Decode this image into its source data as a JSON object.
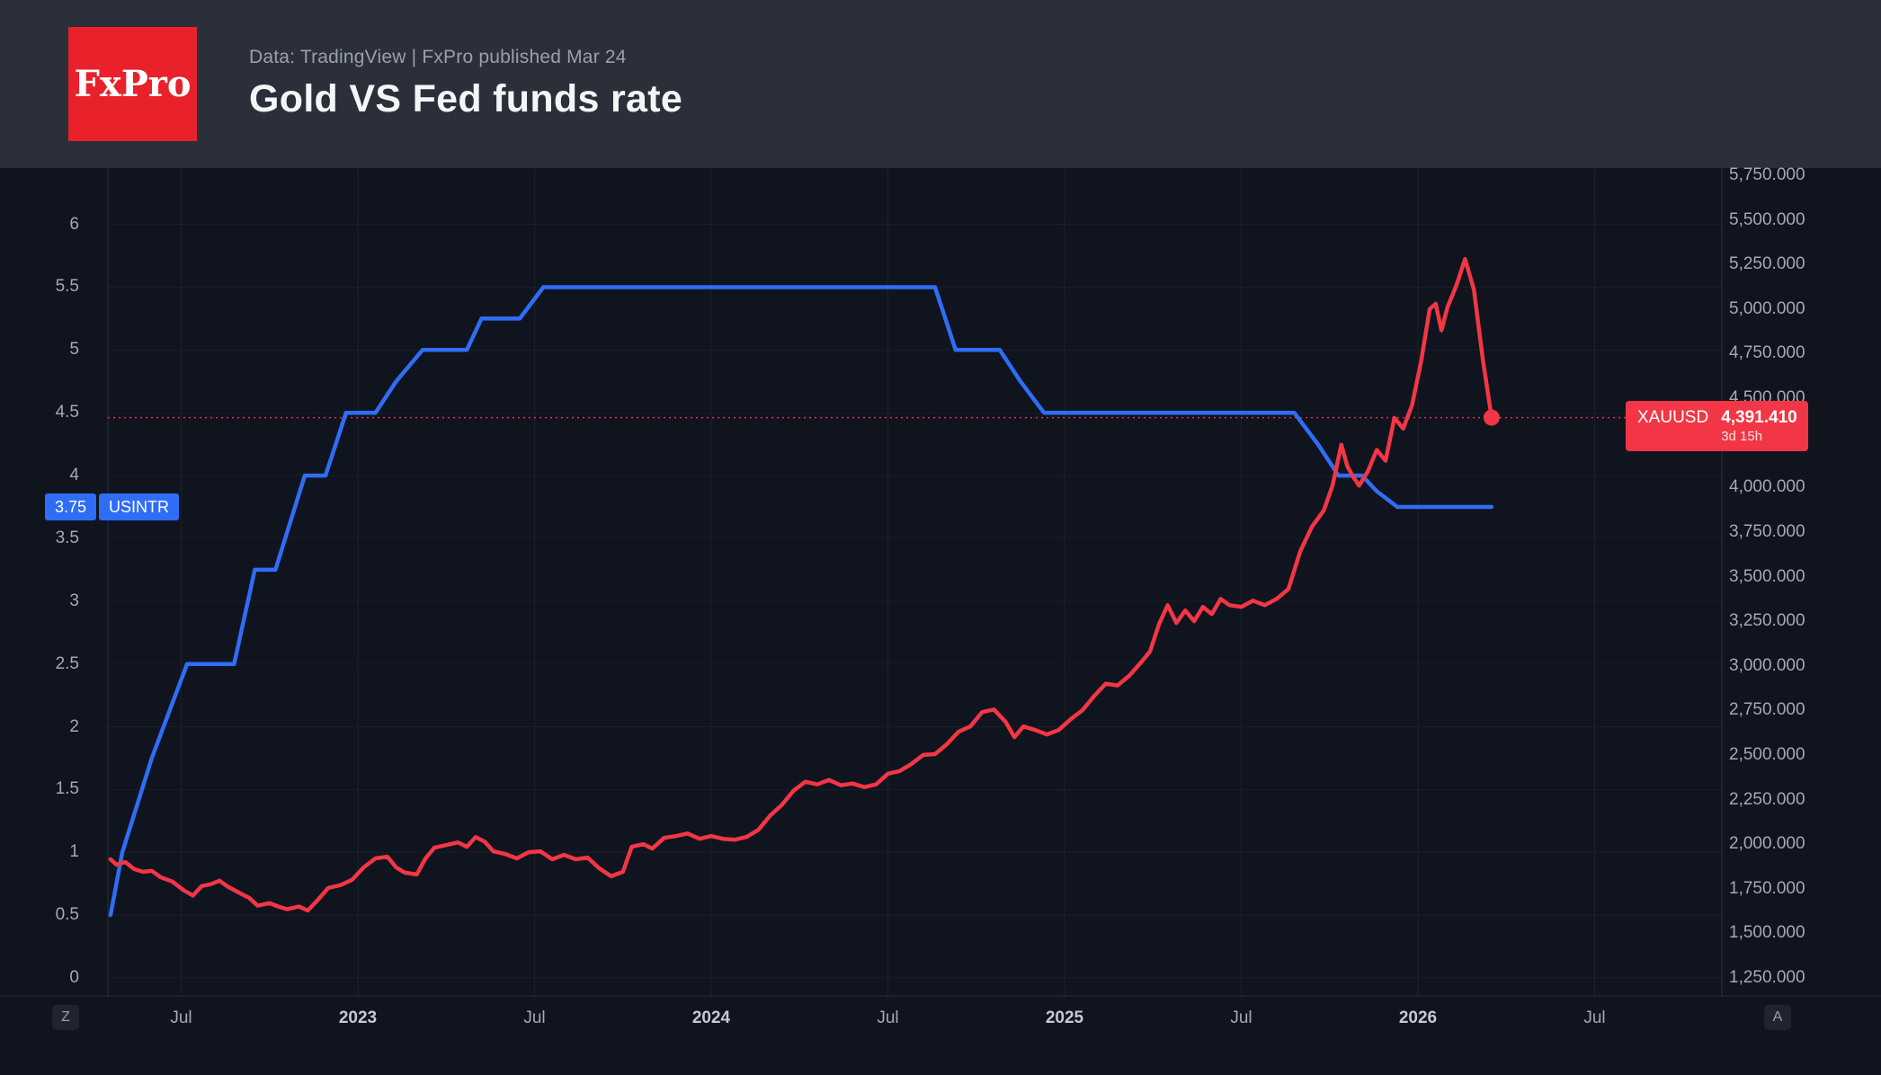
{
  "header": {
    "logo_text": "FxPro",
    "subtitle": "Data: TradingView | FxPro published Mar 24",
    "title": "Gold VS Fed funds rate"
  },
  "badges": {
    "usintr": {
      "value": "3.75",
      "label": "USINTR"
    },
    "xauusd": {
      "symbol": "XAUUSD",
      "value": "4,391.410",
      "countdown": "3d 15h"
    }
  },
  "scale_buttons": {
    "left": "Z",
    "right": "A"
  },
  "colors": {
    "header_bg": "#2b2f3a",
    "chart_bg": "#10141f",
    "logo_red": "#e8212a",
    "blue": "#2f6df6",
    "red": "#f23645",
    "axis_text": "#a6a9b2"
  },
  "chart_data": {
    "type": "line",
    "title": "Gold VS Fed funds rate",
    "x_unit": "months since 2022-01",
    "time_axis": {
      "ticks": [
        6,
        12,
        18,
        24,
        30,
        36,
        42,
        48,
        54
      ],
      "labels": [
        "Jul",
        "2023",
        "Jul",
        "2024",
        "Jul",
        "2025",
        "Jul",
        "2026",
        "Jul"
      ]
    },
    "left_axis": {
      "name": "USINTR",
      "ticks": [
        6,
        5.5,
        5,
        4.5,
        4,
        3.5,
        3,
        2.5,
        2,
        1.5,
        1,
        0.5,
        0
      ],
      "range": [
        0,
        6.45
      ]
    },
    "right_axis": {
      "name": "XAUUSD",
      "ticks": [
        5750,
        5500,
        5250,
        5000,
        4750,
        4500,
        4250,
        4000,
        3750,
        3500,
        3250,
        3000,
        2750,
        2500,
        2250,
        2000,
        1750,
        1500,
        1250
      ],
      "range": [
        1250,
        5790
      ],
      "decimals": 3
    },
    "series": [
      {
        "name": "USINTR",
        "axis": "left",
        "color": "#2f6df6",
        "last_value": 3.75,
        "points": [
          [
            3.6,
            0.5
          ],
          [
            4.0,
            1.0
          ],
          [
            5.0,
            1.75
          ],
          [
            6.2,
            2.5
          ],
          [
            7.8,
            2.5
          ],
          [
            8.5,
            3.25
          ],
          [
            9.2,
            3.25
          ],
          [
            10.2,
            4.0
          ],
          [
            10.9,
            4.0
          ],
          [
            11.6,
            4.5
          ],
          [
            12.6,
            4.5
          ],
          [
            13.3,
            4.75
          ],
          [
            14.2,
            5.0
          ],
          [
            15.7,
            5.0
          ],
          [
            16.2,
            5.25
          ],
          [
            17.5,
            5.25
          ],
          [
            18.3,
            5.5
          ],
          [
            31.6,
            5.5
          ],
          [
            32.3,
            5.0
          ],
          [
            33.8,
            5.0
          ],
          [
            34.5,
            4.75
          ],
          [
            35.3,
            4.5
          ],
          [
            43.8,
            4.5
          ],
          [
            44.6,
            4.25
          ],
          [
            45.3,
            4.0
          ],
          [
            46.1,
            4.0
          ],
          [
            46.6,
            3.875
          ],
          [
            47.3,
            3.75
          ],
          [
            50.5,
            3.75
          ]
        ]
      },
      {
        "name": "XAUUSD",
        "axis": "right",
        "color": "#f23645",
        "last_value": 4391.41,
        "points": [
          [
            3.6,
            1915
          ],
          [
            3.8,
            1885
          ],
          [
            4.1,
            1900
          ],
          [
            4.4,
            1860
          ],
          [
            4.7,
            1845
          ],
          [
            5.0,
            1850
          ],
          [
            5.3,
            1815
          ],
          [
            5.7,
            1790
          ],
          [
            6.1,
            1740
          ],
          [
            6.4,
            1712
          ],
          [
            6.7,
            1765
          ],
          [
            7.0,
            1775
          ],
          [
            7.3,
            1795
          ],
          [
            7.6,
            1760
          ],
          [
            8.0,
            1725
          ],
          [
            8.3,
            1700
          ],
          [
            8.6,
            1655
          ],
          [
            9.0,
            1670
          ],
          [
            9.3,
            1650
          ],
          [
            9.6,
            1635
          ],
          [
            10.0,
            1650
          ],
          [
            10.3,
            1628
          ],
          [
            10.6,
            1680
          ],
          [
            11.0,
            1755
          ],
          [
            11.4,
            1770
          ],
          [
            11.8,
            1800
          ],
          [
            12.2,
            1870
          ],
          [
            12.6,
            1920
          ],
          [
            13.0,
            1930
          ],
          [
            13.3,
            1870
          ],
          [
            13.6,
            1840
          ],
          [
            14.0,
            1830
          ],
          [
            14.3,
            1920
          ],
          [
            14.6,
            1980
          ],
          [
            15.0,
            1995
          ],
          [
            15.4,
            2010
          ],
          [
            15.7,
            1985
          ],
          [
            16.0,
            2040
          ],
          [
            16.3,
            2015
          ],
          [
            16.6,
            1960
          ],
          [
            17.0,
            1945
          ],
          [
            17.4,
            1920
          ],
          [
            17.8,
            1955
          ],
          [
            18.2,
            1960
          ],
          [
            18.6,
            1915
          ],
          [
            19.0,
            1940
          ],
          [
            19.4,
            1915
          ],
          [
            19.8,
            1925
          ],
          [
            20.2,
            1865
          ],
          [
            20.6,
            1820
          ],
          [
            21.0,
            1845
          ],
          [
            21.3,
            1985
          ],
          [
            21.7,
            2000
          ],
          [
            22.0,
            1975
          ],
          [
            22.4,
            2035
          ],
          [
            22.8,
            2045
          ],
          [
            23.2,
            2060
          ],
          [
            23.6,
            2030
          ],
          [
            24.0,
            2045
          ],
          [
            24.4,
            2030
          ],
          [
            24.8,
            2025
          ],
          [
            25.2,
            2040
          ],
          [
            25.6,
            2080
          ],
          [
            26.0,
            2160
          ],
          [
            26.4,
            2220
          ],
          [
            26.8,
            2300
          ],
          [
            27.2,
            2350
          ],
          [
            27.6,
            2335
          ],
          [
            28.0,
            2360
          ],
          [
            28.4,
            2330
          ],
          [
            28.8,
            2340
          ],
          [
            29.2,
            2320
          ],
          [
            29.6,
            2335
          ],
          [
            30.0,
            2395
          ],
          [
            30.4,
            2410
          ],
          [
            30.8,
            2450
          ],
          [
            31.2,
            2500
          ],
          [
            31.6,
            2505
          ],
          [
            32.0,
            2560
          ],
          [
            32.4,
            2630
          ],
          [
            32.8,
            2660
          ],
          [
            33.2,
            2740
          ],
          [
            33.6,
            2755
          ],
          [
            34.0,
            2685
          ],
          [
            34.3,
            2600
          ],
          [
            34.6,
            2660
          ],
          [
            35.0,
            2640
          ],
          [
            35.4,
            2615
          ],
          [
            35.8,
            2640
          ],
          [
            36.2,
            2700
          ],
          [
            36.6,
            2750
          ],
          [
            37.0,
            2830
          ],
          [
            37.4,
            2900
          ],
          [
            37.8,
            2890
          ],
          [
            38.2,
            2945
          ],
          [
            38.6,
            3020
          ],
          [
            38.9,
            3080
          ],
          [
            39.2,
            3230
          ],
          [
            39.5,
            3340
          ],
          [
            39.8,
            3240
          ],
          [
            40.1,
            3310
          ],
          [
            40.4,
            3250
          ],
          [
            40.7,
            3330
          ],
          [
            41.0,
            3290
          ],
          [
            41.3,
            3375
          ],
          [
            41.6,
            3340
          ],
          [
            42.0,
            3330
          ],
          [
            42.4,
            3365
          ],
          [
            42.8,
            3340
          ],
          [
            43.2,
            3375
          ],
          [
            43.6,
            3430
          ],
          [
            44.0,
            3640
          ],
          [
            44.4,
            3780
          ],
          [
            44.8,
            3870
          ],
          [
            45.1,
            4010
          ],
          [
            45.4,
            4240
          ],
          [
            45.6,
            4120
          ],
          [
            45.8,
            4060
          ],
          [
            46.0,
            4010
          ],
          [
            46.3,
            4090
          ],
          [
            46.6,
            4210
          ],
          [
            46.9,
            4150
          ],
          [
            47.2,
            4390
          ],
          [
            47.5,
            4330
          ],
          [
            47.8,
            4460
          ],
          [
            48.1,
            4700
          ],
          [
            48.4,
            5000
          ],
          [
            48.6,
            5030
          ],
          [
            48.8,
            4880
          ],
          [
            49.0,
            5010
          ],
          [
            49.3,
            5130
          ],
          [
            49.6,
            5280
          ],
          [
            49.9,
            5110
          ],
          [
            50.2,
            4720
          ],
          [
            50.5,
            4391.41
          ]
        ]
      }
    ]
  }
}
